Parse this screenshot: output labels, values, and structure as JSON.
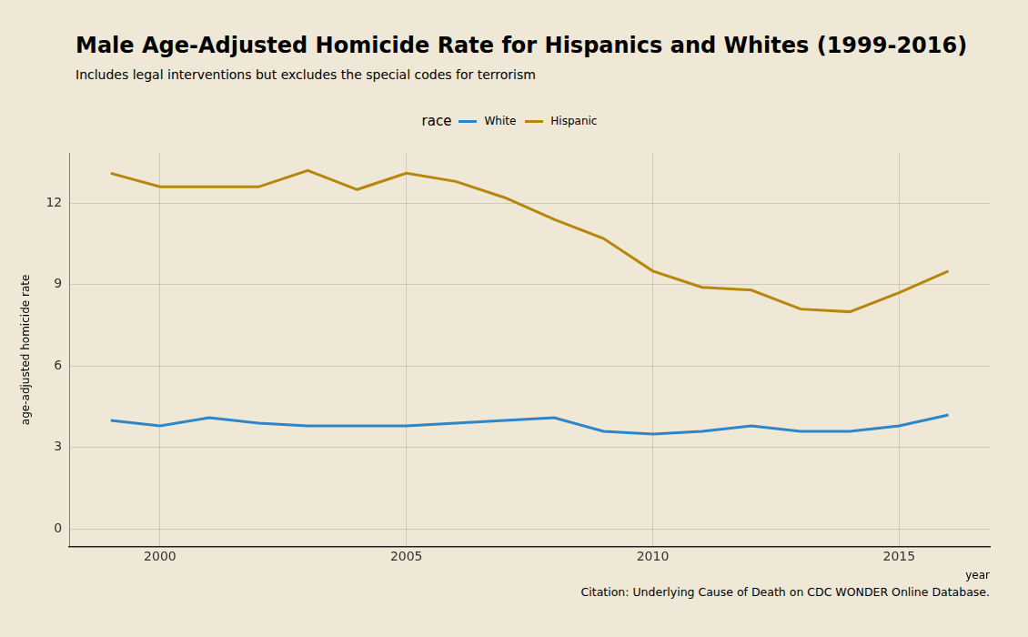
{
  "chart_data": {
    "type": "line",
    "title": "Male Age-Adjusted Homicide Rate for Hispanics and Whites (1999-2016)",
    "subtitle": "Includes legal interventions but excludes the special codes for terrorism",
    "x_label": "year",
    "y_label": "age-adjusted homicide rate",
    "caption": "Citation: Underlying Cause of Death on CDC WONDER Online Database.",
    "legend_title": "race",
    "legend": "top",
    "grid": true,
    "x": [
      1999,
      2000,
      2001,
      2002,
      2003,
      2004,
      2005,
      2006,
      2007,
      2008,
      2009,
      2010,
      2011,
      2012,
      2013,
      2014,
      2015,
      2016
    ],
    "series": [
      {
        "name": "White",
        "color": "#2e86c8",
        "values": [
          4.0,
          3.8,
          4.1,
          3.9,
          3.8,
          3.8,
          3.8,
          3.9,
          4.0,
          4.1,
          3.6,
          3.5,
          3.6,
          3.8,
          3.6,
          3.6,
          3.8,
          4.2
        ]
      },
      {
        "name": "Hispanic",
        "color": "#b8860b",
        "values": [
          13.1,
          12.6,
          12.6,
          12.6,
          13.2,
          12.5,
          13.1,
          12.8,
          12.2,
          11.4,
          10.7,
          9.5,
          8.9,
          8.8,
          8.1,
          8.0,
          8.7,
          9.5
        ]
      }
    ],
    "xlim": [
      1998.16,
      2016.84
    ],
    "xticks": [
      2000,
      2005,
      2010,
      2015
    ],
    "ylim": [
      -0.65,
      13.85
    ],
    "yticks": [
      0,
      3,
      6,
      9,
      12
    ]
  }
}
